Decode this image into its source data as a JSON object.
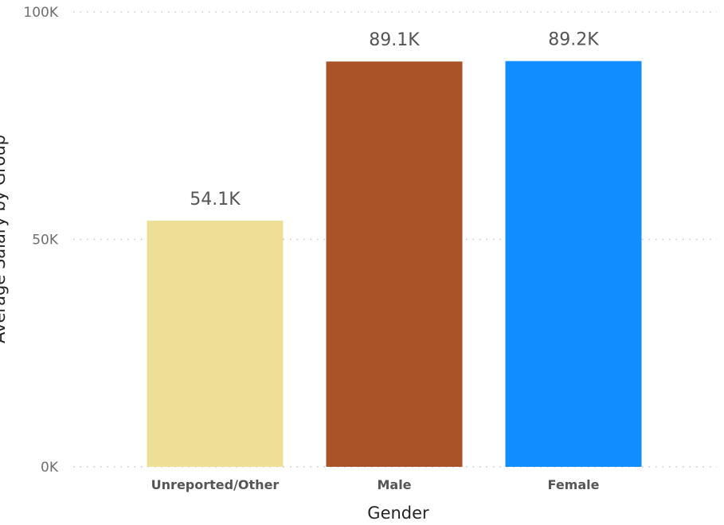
{
  "chart_data": {
    "type": "bar",
    "title": "",
    "xlabel": "Gender",
    "ylabel": "Average Salary by Group",
    "categories": [
      "Unreported/Other",
      "Male",
      "Female"
    ],
    "values": [
      54100,
      89100,
      89200
    ],
    "data_labels": [
      "54.1K",
      "89.1K",
      "89.2K"
    ],
    "colors": [
      "#EEDF96",
      "#AA5228",
      "#118DFF"
    ],
    "yticks": [
      {
        "value": 0,
        "label": "0K"
      },
      {
        "value": 50000,
        "label": "50K"
      },
      {
        "value": 100000,
        "label": "100K"
      }
    ],
    "ylim": [
      0,
      100000
    ],
    "grid": true,
    "legend": "none"
  }
}
